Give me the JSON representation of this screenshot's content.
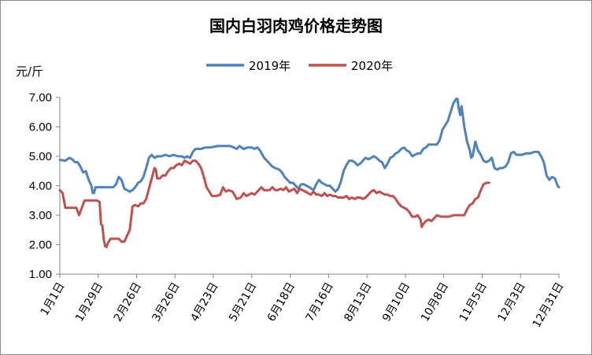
{
  "chart_data": {
    "type": "line",
    "title": "国内白羽肉鸡价格走势图",
    "ylabel": "元/斤",
    "xlabel": "",
    "ylim": [
      1,
      7
    ],
    "yticks": [
      "1.00",
      "2.00",
      "3.00",
      "4.00",
      "5.00",
      "6.00",
      "7.00"
    ],
    "grid": false,
    "legend_position": "top-center",
    "x_range": [
      1,
      365
    ],
    "categories": [
      "1月1日",
      "1月29日",
      "2月26日",
      "3月26日",
      "4月23日",
      "5月21日",
      "6月18日",
      "7月16日",
      "8月13日",
      "9月10日",
      "10月8日",
      "11月5日",
      "12月3日",
      "12月31日"
    ],
    "category_days": [
      1,
      29,
      57,
      85,
      113,
      141,
      169,
      197,
      225,
      253,
      281,
      309,
      337,
      365
    ],
    "series": [
      {
        "name": "2019年",
        "color": "#4f81bd",
        "points": [
          [
            1,
            4.88
          ],
          [
            5,
            4.85
          ],
          [
            8,
            4.95
          ],
          [
            10,
            4.9
          ],
          [
            12,
            4.8
          ],
          [
            14,
            4.8
          ],
          [
            16,
            4.65
          ],
          [
            18,
            4.45
          ],
          [
            20,
            4.5
          ],
          [
            22,
            4.2
          ],
          [
            24,
            4.0
          ],
          [
            25,
            3.75
          ],
          [
            26,
            3.75
          ],
          [
            27,
            3.95
          ],
          [
            30,
            3.95
          ],
          [
            33,
            3.95
          ],
          [
            36,
            3.95
          ],
          [
            40,
            3.95
          ],
          [
            42,
            4.05
          ],
          [
            44,
            4.3
          ],
          [
            46,
            4.2
          ],
          [
            48,
            3.9
          ],
          [
            50,
            3.85
          ],
          [
            52,
            3.8
          ],
          [
            54,
            3.85
          ],
          [
            56,
            3.95
          ],
          [
            58,
            4.1
          ],
          [
            60,
            4.15
          ],
          [
            62,
            4.3
          ],
          [
            64,
            4.6
          ],
          [
            66,
            4.95
          ],
          [
            68,
            5.05
          ],
          [
            70,
            4.95
          ],
          [
            72,
            5.0
          ],
          [
            75,
            5.0
          ],
          [
            78,
            5.05
          ],
          [
            81,
            5.0
          ],
          [
            84,
            5.05
          ],
          [
            87,
            5.0
          ],
          [
            90,
            5.0
          ],
          [
            92,
            4.95
          ],
          [
            94,
            5.0
          ],
          [
            96,
            4.95
          ],
          [
            98,
            5.15
          ],
          [
            100,
            5.25
          ],
          [
            104,
            5.25
          ],
          [
            107,
            5.3
          ],
          [
            110,
            5.3
          ],
          [
            113,
            5.32
          ],
          [
            116,
            5.35
          ],
          [
            120,
            5.35
          ],
          [
            125,
            5.35
          ],
          [
            128,
            5.3
          ],
          [
            130,
            5.25
          ],
          [
            132,
            5.35
          ],
          [
            135,
            5.25
          ],
          [
            138,
            5.3
          ],
          [
            141,
            5.3
          ],
          [
            143,
            5.25
          ],
          [
            145,
            5.3
          ],
          [
            147,
            5.2
          ],
          [
            150,
            4.95
          ],
          [
            153,
            4.8
          ],
          [
            156,
            4.65
          ],
          [
            158,
            4.6
          ],
          [
            161,
            4.55
          ],
          [
            163,
            4.45
          ],
          [
            165,
            4.3
          ],
          [
            167,
            4.2
          ],
          [
            169,
            4.1
          ],
          [
            171,
            4.1
          ],
          [
            173,
            4.0
          ],
          [
            175,
            3.9
          ],
          [
            177,
            4.05
          ],
          [
            179,
            4.05
          ],
          [
            181,
            4.0
          ],
          [
            183,
            3.95
          ],
          [
            186,
            3.85
          ],
          [
            188,
            4.05
          ],
          [
            190,
            4.2
          ],
          [
            192,
            4.1
          ],
          [
            194,
            4.05
          ],
          [
            196,
            4.0
          ],
          [
            198,
            4.0
          ],
          [
            200,
            3.9
          ],
          [
            202,
            3.8
          ],
          [
            204,
            3.9
          ],
          [
            206,
            4.15
          ],
          [
            208,
            4.5
          ],
          [
            210,
            4.7
          ],
          [
            212,
            4.85
          ],
          [
            214,
            4.85
          ],
          [
            216,
            4.8
          ],
          [
            218,
            4.7
          ],
          [
            220,
            4.75
          ],
          [
            222,
            4.85
          ],
          [
            224,
            4.95
          ],
          [
            226,
            4.9
          ],
          [
            228,
            4.95
          ],
          [
            230,
            5.0
          ],
          [
            232,
            4.95
          ],
          [
            234,
            4.85
          ],
          [
            236,
            4.8
          ],
          [
            238,
            4.6
          ],
          [
            240,
            4.75
          ],
          [
            242,
            4.95
          ],
          [
            244,
            5.0
          ],
          [
            246,
            5.1
          ],
          [
            248,
            5.15
          ],
          [
            250,
            5.25
          ],
          [
            252,
            5.3
          ],
          [
            254,
            5.2
          ],
          [
            256,
            5.15
          ],
          [
            258,
            5.0
          ],
          [
            260,
            5.05
          ],
          [
            262,
            5.1
          ],
          [
            264,
            5.1
          ],
          [
            266,
            5.25
          ],
          [
            268,
            5.3
          ],
          [
            270,
            5.4
          ],
          [
            273,
            5.4
          ],
          [
            276,
            5.4
          ],
          [
            278,
            5.55
          ],
          [
            280,
            5.9
          ],
          [
            282,
            6.05
          ],
          [
            284,
            6.2
          ],
          [
            286,
            6.5
          ],
          [
            288,
            6.8
          ],
          [
            290,
            6.95
          ],
          [
            291,
            6.95
          ],
          [
            292,
            6.6
          ],
          [
            293,
            6.4
          ],
          [
            294,
            6.7
          ],
          [
            296,
            6.0
          ],
          [
            298,
            5.5
          ],
          [
            300,
            5.2
          ],
          [
            301,
            4.95
          ],
          [
            302,
            5.0
          ],
          [
            304,
            5.5
          ],
          [
            306,
            5.2
          ],
          [
            308,
            5.05
          ],
          [
            310,
            4.85
          ],
          [
            312,
            4.8
          ],
          [
            314,
            4.85
          ],
          [
            316,
            4.95
          ],
          [
            318,
            4.6
          ],
          [
            320,
            4.55
          ],
          [
            322,
            4.6
          ],
          [
            324,
            4.6
          ],
          [
            326,
            4.65
          ],
          [
            328,
            4.8
          ],
          [
            330,
            5.1
          ],
          [
            332,
            5.15
          ],
          [
            334,
            5.05
          ],
          [
            336,
            5.05
          ],
          [
            338,
            5.05
          ],
          [
            341,
            5.1
          ],
          [
            344,
            5.1
          ],
          [
            347,
            5.15
          ],
          [
            350,
            5.15
          ],
          [
            352,
            5.0
          ],
          [
            354,
            4.8
          ],
          [
            356,
            4.35
          ],
          [
            358,
            4.2
          ],
          [
            360,
            4.3
          ],
          [
            362,
            4.25
          ],
          [
            364,
            4.0
          ],
          [
            365,
            3.95
          ]
        ]
      },
      {
        "name": "2020年",
        "color": "#c0504d",
        "points": [
          [
            1,
            3.85
          ],
          [
            3,
            3.75
          ],
          [
            5,
            3.25
          ],
          [
            8,
            3.25
          ],
          [
            11,
            3.25
          ],
          [
            13,
            3.25
          ],
          [
            15,
            3.0
          ],
          [
            17,
            3.25
          ],
          [
            19,
            3.5
          ],
          [
            22,
            3.5
          ],
          [
            25,
            3.5
          ],
          [
            28,
            3.5
          ],
          [
            30,
            3.45
          ],
          [
            31,
            2.7
          ],
          [
            32,
            2.65
          ],
          [
            33,
            2.2
          ],
          [
            34,
            1.95
          ],
          [
            35,
            1.92
          ],
          [
            36,
            2.05
          ],
          [
            38,
            2.2
          ],
          [
            41,
            2.2
          ],
          [
            44,
            2.2
          ],
          [
            46,
            2.1
          ],
          [
            48,
            2.1
          ],
          [
            50,
            2.3
          ],
          [
            52,
            2.5
          ],
          [
            54,
            3.3
          ],
          [
            56,
            3.35
          ],
          [
            58,
            3.3
          ],
          [
            60,
            3.4
          ],
          [
            62,
            3.4
          ],
          [
            64,
            3.55
          ],
          [
            66,
            3.9
          ],
          [
            68,
            4.25
          ],
          [
            70,
            4.6
          ],
          [
            71,
            4.55
          ],
          [
            72,
            4.25
          ],
          [
            74,
            4.25
          ],
          [
            76,
            4.35
          ],
          [
            78,
            4.35
          ],
          [
            80,
            4.5
          ],
          [
            82,
            4.6
          ],
          [
            84,
            4.6
          ],
          [
            86,
            4.7
          ],
          [
            88,
            4.75
          ],
          [
            90,
            4.7
          ],
          [
            92,
            4.85
          ],
          [
            94,
            4.8
          ],
          [
            96,
            4.75
          ],
          [
            98,
            4.85
          ],
          [
            100,
            4.85
          ],
          [
            102,
            4.75
          ],
          [
            104,
            4.6
          ],
          [
            106,
            4.3
          ],
          [
            108,
            3.95
          ],
          [
            110,
            3.8
          ],
          [
            112,
            3.65
          ],
          [
            115,
            3.65
          ],
          [
            118,
            3.7
          ],
          [
            120,
            3.95
          ],
          [
            122,
            3.8
          ],
          [
            124,
            3.85
          ],
          [
            127,
            3.8
          ],
          [
            130,
            3.55
          ],
          [
            133,
            3.6
          ],
          [
            135,
            3.75
          ],
          [
            137,
            3.65
          ],
          [
            139,
            3.7
          ],
          [
            141,
            3.75
          ],
          [
            143,
            3.7
          ],
          [
            146,
            3.85
          ],
          [
            148,
            3.95
          ],
          [
            150,
            3.85
          ],
          [
            152,
            3.85
          ],
          [
            154,
            3.85
          ],
          [
            156,
            3.95
          ],
          [
            158,
            3.85
          ],
          [
            160,
            3.85
          ],
          [
            162,
            3.9
          ],
          [
            164,
            3.85
          ],
          [
            166,
            3.95
          ],
          [
            168,
            3.8
          ],
          [
            170,
            3.85
          ],
          [
            172,
            3.9
          ],
          [
            174,
            3.75
          ],
          [
            176,
            3.9
          ],
          [
            178,
            3.85
          ],
          [
            180,
            3.8
          ],
          [
            182,
            3.75
          ],
          [
            184,
            3.7
          ],
          [
            186,
            3.8
          ],
          [
            188,
            3.7
          ],
          [
            190,
            3.7
          ],
          [
            192,
            3.65
          ],
          [
            194,
            3.75
          ],
          [
            196,
            3.65
          ],
          [
            198,
            3.7
          ],
          [
            200,
            3.65
          ],
          [
            202,
            3.65
          ],
          [
            204,
            3.6
          ],
          [
            206,
            3.6
          ],
          [
            208,
            3.6
          ],
          [
            210,
            3.65
          ],
          [
            212,
            3.55
          ],
          [
            214,
            3.6
          ],
          [
            216,
            3.55
          ],
          [
            218,
            3.6
          ],
          [
            220,
            3.6
          ],
          [
            222,
            3.55
          ],
          [
            224,
            3.6
          ],
          [
            226,
            3.7
          ],
          [
            228,
            3.8
          ],
          [
            230,
            3.85
          ],
          [
            232,
            3.75
          ],
          [
            234,
            3.8
          ],
          [
            236,
            3.75
          ],
          [
            238,
            3.7
          ],
          [
            240,
            3.7
          ],
          [
            242,
            3.65
          ],
          [
            244,
            3.65
          ],
          [
            246,
            3.55
          ],
          [
            248,
            3.4
          ],
          [
            250,
            3.3
          ],
          [
            252,
            3.25
          ],
          [
            254,
            3.2
          ],
          [
            256,
            3.1
          ],
          [
            258,
            2.95
          ],
          [
            260,
            2.95
          ],
          [
            262,
            3.0
          ],
          [
            264,
            2.85
          ],
          [
            265,
            2.6
          ],
          [
            266,
            2.7
          ],
          [
            268,
            2.8
          ],
          [
            270,
            2.85
          ],
          [
            272,
            2.8
          ],
          [
            274,
            2.9
          ],
          [
            276,
            3.0
          ],
          [
            279,
            2.95
          ],
          [
            282,
            2.95
          ],
          [
            285,
            2.95
          ],
          [
            288,
            3.0
          ],
          [
            291,
            3.0
          ],
          [
            294,
            3.0
          ],
          [
            296,
            3.0
          ],
          [
            298,
            3.2
          ],
          [
            300,
            3.35
          ],
          [
            302,
            3.4
          ],
          [
            304,
            3.55
          ],
          [
            306,
            3.6
          ],
          [
            308,
            3.85
          ],
          [
            310,
            4.05
          ],
          [
            312,
            4.1
          ],
          [
            314,
            4.1
          ]
        ]
      }
    ]
  }
}
